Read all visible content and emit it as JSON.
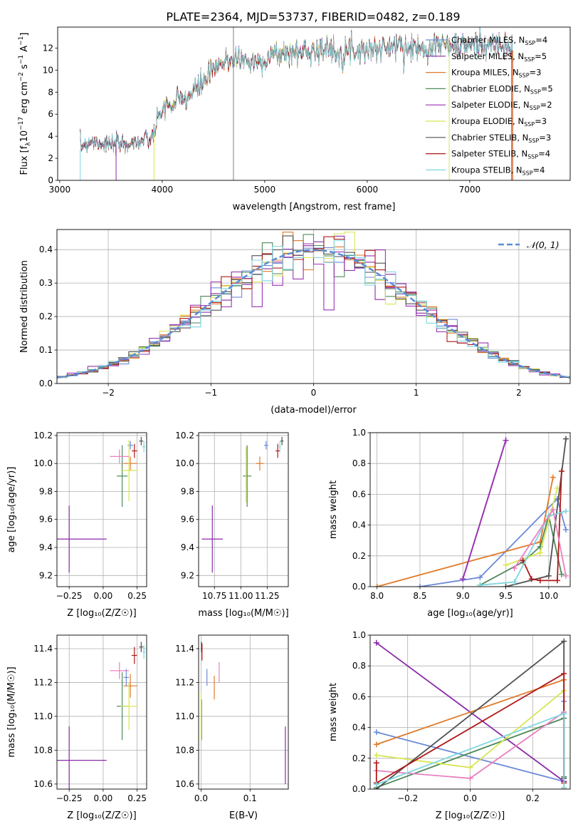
{
  "figure_title": "PLATE=2364, MJD=53737, FIBERID=0482, z=0.189",
  "colors": {
    "Chabrier MILES": "#6c8ad8",
    "Salpeter MILES": "#8a2aa8",
    "Kroupa MILES": "#e07a28",
    "Chabrier ELODIE": "#4e8a5a",
    "Salpeter ELODIE": "#9a32b2",
    "Kroupa ELODIE": "#d8e650",
    "Chabrier STELIB": "#505050",
    "Salpeter STELIB": "#b01818",
    "Kroupa STELIB": "#7fd6e0",
    "gaussian": "#5b8bd6",
    "extra_pink": "#e880c0"
  },
  "chart_data": [
    {
      "id": "spectrum",
      "type": "line",
      "title": "PLATE=2364, MJD=53737, FIBERID=0482, z=0.189",
      "xlabel": "wavelength [Angstrom, rest frame]",
      "ylabel_main": "Flux [f",
      "ylabel_sub": "λ",
      "ylabel_rest": "10",
      "ylabel_exp": "−17",
      "ylabel_tail": " erg cm",
      "xlim": [
        2980,
        7980
      ],
      "ylim": [
        0,
        13.9
      ],
      "xticks": [
        3000,
        4000,
        5000,
        6000,
        7000
      ],
      "yticks": [
        0,
        2,
        4,
        6,
        8,
        10,
        12
      ],
      "continuum_x": [
        3200,
        3300,
        3500,
        3700,
        3900,
        4000,
        4100,
        4300,
        4500,
        4700,
        4900,
        5100,
        5300,
        5500,
        5700,
        5900,
        6100,
        6300,
        6500,
        6700,
        6900,
        7100,
        7300,
        7400
      ],
      "continuum_y": [
        3.0,
        3.6,
        3.2,
        3.4,
        3.7,
        6.6,
        6.8,
        7.9,
        10.0,
        11.2,
        10.6,
        11.4,
        11.6,
        11.9,
        11.7,
        11.9,
        11.9,
        12.2,
        11.9,
        12.4,
        12.1,
        12.4,
        12.1,
        11.8
      ],
      "legend": [
        {
          "label": "Chabrier MILES, N",
          "sub": "SSP",
          "value": "=4"
        },
        {
          "label": "Salpeter MILES, N",
          "sub": "SSP",
          "value": "=5"
        },
        {
          "label": "Kroupa MILES, N",
          "sub": "SSP",
          "value": "=3"
        },
        {
          "label": "Chabrier ELODIE, N",
          "sub": "SSP",
          "value": "=5"
        },
        {
          "label": "Salpeter ELODIE, N",
          "sub": "SSP",
          "value": "=2"
        },
        {
          "label": "Kroupa ELODIE, N",
          "sub": "SSP",
          "value": "=3"
        },
        {
          "label": "Chabrier STELIB, N",
          "sub": "SSP",
          "value": "=3"
        },
        {
          "label": "Salpeter STELIB, N",
          "sub": "SSP",
          "value": "=4"
        },
        {
          "label": "Kroupa STELIB, N",
          "sub": "SSP",
          "value": "=4"
        }
      ]
    },
    {
      "id": "residuals",
      "type": "line",
      "xlabel": "(data-model)/error",
      "ylabel": "Normed distribution",
      "xlim": [
        -2.5,
        2.5
      ],
      "ylim": [
        0,
        0.46
      ],
      "xticks": [
        -2,
        -1,
        0,
        1,
        2
      ],
      "yticks": [
        0.0,
        0.1,
        0.2,
        0.3,
        0.4
      ],
      "legend": "𝒩(0, 1)",
      "bin_width": 0.1
    },
    {
      "id": "age_vs_Z",
      "type": "scatter",
      "xlabel": "Z [log₁₀(Z/Z☉)]",
      "ylabel": "age  [log₁₀(age/yr)]",
      "xlim": [
        -0.34,
        0.32
      ],
      "ylim": [
        9.12,
        10.22
      ],
      "xticks": [
        -0.25,
        0.0,
        0.25
      ],
      "yticks": [
        9.2,
        9.4,
        9.6,
        9.8,
        10.0,
        10.2
      ],
      "points": [
        {
          "c": "Chabrier MILES",
          "x": 0.2,
          "y": 10.13,
          "xe": 0.04,
          "ye": 0.03
        },
        {
          "c": "Salpeter MILES",
          "x": -0.25,
          "y": 9.46,
          "xe": 0.55,
          "ye": 0.24
        },
        {
          "c": "Kroupa MILES",
          "x": 0.2,
          "y": 10.0,
          "xe": 0.1,
          "ye": 0.05
        },
        {
          "c": "Chabrier ELODIE",
          "x": 0.14,
          "y": 9.91,
          "xe": 0.08,
          "ye": 0.22
        },
        {
          "c": "Kroupa ELODIE",
          "x": 0.19,
          "y": 9.95,
          "xe": 0.12,
          "ye": 0.22
        },
        {
          "c": "extra_pink",
          "x": 0.12,
          "y": 10.05,
          "xe": 0.14,
          "ye": 0.05
        },
        {
          "c": "Chabrier STELIB",
          "x": 0.28,
          "y": 10.16,
          "xe": 0.03,
          "ye": 0.03
        },
        {
          "c": "Salpeter STELIB",
          "x": 0.23,
          "y": 10.09,
          "xe": 0.04,
          "ye": 0.05
        },
        {
          "c": "Kroupa STELIB",
          "x": 0.3,
          "y": 10.12,
          "xe": 0.02,
          "ye": 0.04
        }
      ]
    },
    {
      "id": "age_vs_mass",
      "type": "scatter",
      "xlabel": "mass [log₁₀(M/M☉)]",
      "xlim": [
        10.6,
        11.45
      ],
      "ylim": [
        9.12,
        10.22
      ],
      "xticks": [
        10.75,
        11.0,
        11.25
      ],
      "yticks": [
        9.2,
        9.4,
        9.6,
        9.8,
        10.0,
        10.2
      ],
      "points": [
        {
          "c": "Chabrier MILES",
          "x": 11.24,
          "y": 10.13,
          "xe": 0.04,
          "ye": 0.03
        },
        {
          "c": "Salpeter MILES",
          "x": 10.73,
          "y": 9.46,
          "xe": 0.2,
          "ye": 0.24
        },
        {
          "c": "Kroupa MILES",
          "x": 11.18,
          "y": 10.0,
          "xe": 0.07,
          "ye": 0.05
        },
        {
          "c": "Chabrier ELODIE",
          "x": 11.06,
          "y": 9.91,
          "xe": 0.08,
          "ye": 0.22
        },
        {
          "c": "Kroupa ELODIE",
          "x": 11.05,
          "y": 9.92,
          "xe": 0.01,
          "ye": 0.2
        },
        {
          "c": "Chabrier STELIB",
          "x": 11.39,
          "y": 10.16,
          "xe": 0.03,
          "ye": 0.03
        },
        {
          "c": "Salpeter STELIB",
          "x": 11.35,
          "y": 10.09,
          "xe": 0.04,
          "ye": 0.05
        },
        {
          "c": "Kroupa STELIB",
          "x": 11.37,
          "y": 10.12,
          "xe": 0.02,
          "ye": 0.04
        }
      ]
    },
    {
      "id": "weight_vs_age",
      "type": "line",
      "xlabel": "age  [log₁₀(age/yr)]",
      "ylabel": "mass weight",
      "xlim": [
        7.92,
        10.25
      ],
      "ylim": [
        0,
        1.0
      ],
      "xticks": [
        8.0,
        8.5,
        9.0,
        9.5,
        10.0
      ],
      "yticks": [
        0.0,
        0.2,
        0.4,
        0.6,
        0.8,
        1.0
      ],
      "series": [
        {
          "c": "Chabrier MILES",
          "x": [
            8.5,
            9.2,
            10.1,
            10.2
          ],
          "y": [
            0.0,
            0.06,
            0.57,
            0.37
          ]
        },
        {
          "c": "Salpeter MILES",
          "x": [
            9.0,
            9.5
          ],
          "y": [
            0.05,
            0.95
          ]
        },
        {
          "c": "Kroupa MILES",
          "x": [
            8.0,
            9.9,
            10.05
          ],
          "y": [
            0.0,
            0.29,
            0.71
          ]
        },
        {
          "c": "Chabrier ELODIE",
          "x": [
            9.2,
            9.7,
            9.9,
            10.0,
            10.15
          ],
          "y": [
            0.01,
            0.16,
            0.26,
            0.46,
            0.08
          ]
        },
        {
          "c": "Salpeter ELODIE",
          "x": [
            9.0,
            9.5
          ],
          "y": [
            0.05,
            0.95
          ]
        },
        {
          "c": "Kroupa ELODIE",
          "x": [
            9.5,
            9.9,
            10.1
          ],
          "y": [
            0.14,
            0.22,
            0.64
          ]
        },
        {
          "c": "Chabrier STELIB",
          "x": [
            9.5,
            10.0,
            10.2
          ],
          "y": [
            0.0,
            0.07,
            0.96
          ]
        },
        {
          "c": "Salpeter STELIB",
          "x": [
            9.7,
            9.8,
            9.9,
            10.1,
            10.15
          ],
          "y": [
            0.17,
            0.05,
            0.04,
            0.04,
            0.75
          ]
        },
        {
          "c": "Kroupa STELIB",
          "x": [
            9.2,
            9.6,
            10.0,
            10.2
          ],
          "y": [
            0.01,
            0.03,
            0.46,
            0.49
          ]
        },
        {
          "c": "extra_pink",
          "x": [
            9.6,
            10.05,
            10.2
          ],
          "y": [
            0.12,
            0.5,
            0.07
          ]
        }
      ]
    },
    {
      "id": "mass_vs_Z",
      "type": "scatter",
      "xlabel": "Z [log₁₀(Z/Z☉)]",
      "ylabel": "mass [log₁₀(M/M☉)]",
      "xlim": [
        -0.34,
        0.32
      ],
      "ylim": [
        10.57,
        11.48
      ],
      "xticks": [
        -0.25,
        0.0,
        0.25
      ],
      "yticks": [
        10.6,
        10.8,
        11.0,
        11.2,
        11.4
      ],
      "points": [
        {
          "c": "Chabrier MILES",
          "x": 0.17,
          "y": 11.23,
          "xe": 0.04,
          "ye": 0.05
        },
        {
          "c": "Salpeter MILES",
          "x": -0.25,
          "y": 10.74,
          "xe": 0.55,
          "ye": 0.2
        },
        {
          "c": "Kroupa MILES",
          "x": 0.2,
          "y": 11.18,
          "xe": 0.1,
          "ye": 0.07
        },
        {
          "c": "Chabrier ELODIE",
          "x": 0.14,
          "y": 11.06,
          "xe": 0.08,
          "ye": 0.2
        },
        {
          "c": "Kroupa ELODIE",
          "x": 0.19,
          "y": 11.06,
          "xe": 0.12,
          "ye": 0.14
        },
        {
          "c": "extra_pink",
          "x": 0.12,
          "y": 11.27,
          "xe": 0.14,
          "ye": 0.05
        },
        {
          "c": "Chabrier STELIB",
          "x": 0.28,
          "y": 11.41,
          "xe": 0.03,
          "ye": 0.03
        },
        {
          "c": "Salpeter STELIB",
          "x": 0.23,
          "y": 11.36,
          "xe": 0.04,
          "ye": 0.05
        },
        {
          "c": "Kroupa STELIB",
          "x": 0.3,
          "y": 11.38,
          "xe": 0.02,
          "ye": 0.04
        }
      ]
    },
    {
      "id": "mass_vs_EBV",
      "type": "scatter",
      "xlabel": "E(B-V)",
      "xlim": [
        -0.005,
        0.178
      ],
      "ylim": [
        10.57,
        11.48
      ],
      "xticks": [
        0.0,
        0.1
      ],
      "yticks": [
        10.6,
        10.8,
        11.0,
        11.2,
        11.4
      ],
      "points": [
        {
          "c": "Chabrier MILES",
          "x": 0.012,
          "y": 11.23,
          "xe": 0.0,
          "ye": 0.05
        },
        {
          "c": "Salpeter MILES",
          "x": 0.172,
          "y": 10.77,
          "xe": 0.0,
          "ye": 0.17
        },
        {
          "c": "Kroupa MILES",
          "x": 0.027,
          "y": 11.17,
          "xe": 0.0,
          "ye": 0.07
        },
        {
          "c": "Chabrier ELODIE",
          "x": 0.001,
          "y": 10.98,
          "xe": 0.0,
          "ye": 0.12
        },
        {
          "c": "Kroupa ELODIE",
          "x": 0.0,
          "y": 11.0,
          "xe": 0.0,
          "ye": 0.14
        },
        {
          "c": "extra_pink",
          "x": 0.037,
          "y": 11.26,
          "xe": 0.0,
          "ye": 0.06
        },
        {
          "c": "Chabrier STELIB",
          "x": 0.001,
          "y": 11.41,
          "xe": 0.0,
          "ye": 0.03
        },
        {
          "c": "Salpeter STELIB",
          "x": 0.002,
          "y": 11.38,
          "xe": 0.0,
          "ye": 0.05
        }
      ]
    },
    {
      "id": "weight_vs_Z",
      "type": "line",
      "xlabel": "Z [log₁₀(Z/Z☉)]",
      "ylabel": "mass weight",
      "xlim": [
        -0.32,
        0.32
      ],
      "ylim": [
        0,
        1.0
      ],
      "xticks": [
        -0.2,
        0.0,
        0.2
      ],
      "yticks": [
        0.0,
        0.2,
        0.4,
        0.6,
        0.8,
        1.0
      ],
      "series": [
        {
          "c": "Chabrier MILES",
          "x": [
            -0.3,
            0.3,
            0.3
          ],
          "y": [
            0.37,
            0.05,
            0.57
          ]
        },
        {
          "c": "Salpeter MILES",
          "x": [
            -0.3,
            0.3
          ],
          "y": [
            0.95,
            0.05
          ]
        },
        {
          "c": "Kroupa MILES",
          "x": [
            -0.3,
            0.3,
            0.3
          ],
          "y": [
            0.29,
            0.71,
            0.0
          ]
        },
        {
          "c": "Chabrier ELODIE",
          "x": [
            -0.3,
            0.3,
            0.3
          ],
          "y": [
            0.01,
            0.46,
            0.08
          ]
        },
        {
          "c": "Kroupa ELODIE",
          "x": [
            -0.3,
            0.0,
            0.3
          ],
          "y": [
            0.22,
            0.14,
            0.64
          ]
        },
        {
          "c": "extra_pink",
          "x": [
            -0.3,
            0.0,
            0.3
          ],
          "y": [
            0.12,
            0.07,
            0.5
          ]
        },
        {
          "c": "Chabrier STELIB",
          "x": [
            -0.3,
            0.3,
            0.3
          ],
          "y": [
            0.0,
            0.96,
            0.07
          ]
        },
        {
          "c": "Salpeter STELIB",
          "x": [
            -0.3,
            -0.3,
            0.3,
            0.3
          ],
          "y": [
            0.17,
            0.04,
            0.75,
            0.04
          ]
        },
        {
          "c": "Kroupa STELIB",
          "x": [
            -0.3,
            0.3,
            0.3
          ],
          "y": [
            0.03,
            0.49,
            0.01
          ]
        }
      ]
    }
  ]
}
